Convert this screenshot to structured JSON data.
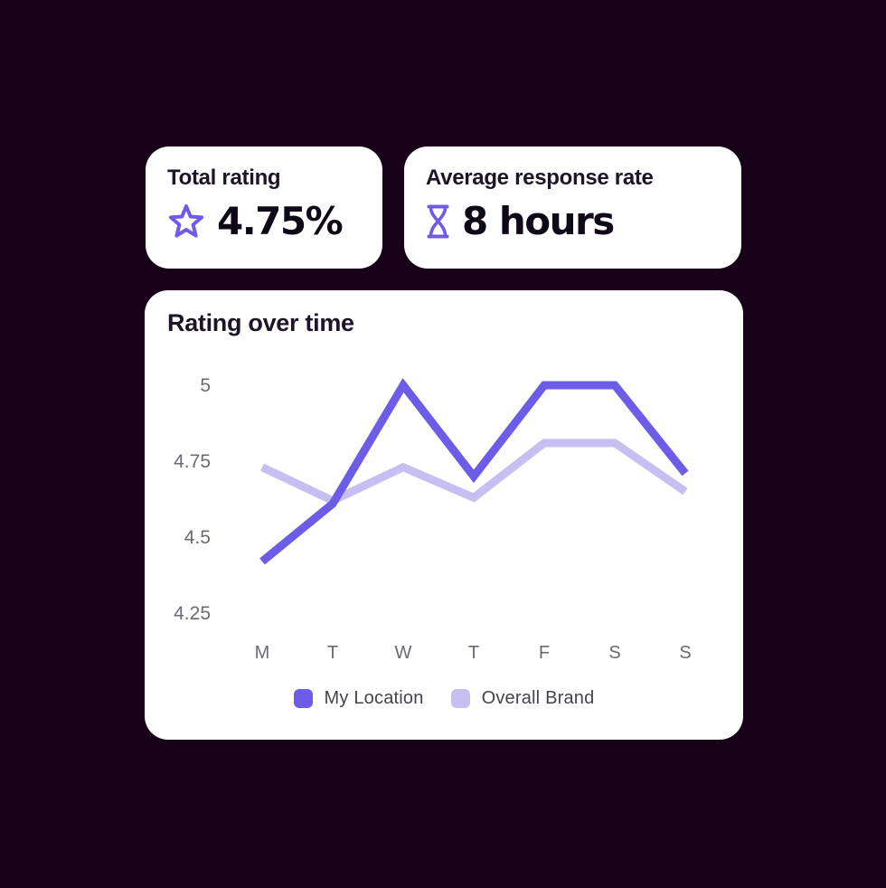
{
  "cards": {
    "total_rating": {
      "label": "Total rating",
      "value": "4.75%",
      "icon": "star-icon"
    },
    "avg_response": {
      "label": "Average response rate",
      "value": "8 hours",
      "icon": "hourglass-icon"
    }
  },
  "chart_data": {
    "type": "line",
    "title": "Rating over time",
    "categories": [
      "M",
      "T",
      "W",
      "T",
      "F",
      "S",
      "S"
    ],
    "yticks": [
      5,
      4.75,
      4.5,
      4.25
    ],
    "ylim": [
      4.25,
      5
    ],
    "grid": false,
    "legend_position": "bottom",
    "series": [
      {
        "name": "My Location",
        "color": "#6C5CE7",
        "values": [
          4.42,
          4.61,
          5.0,
          4.7,
          5.0,
          5.0,
          4.71
        ]
      },
      {
        "name": "Overall Brand",
        "color": "#C7BFF2",
        "values": [
          4.73,
          4.62,
          4.73,
          4.63,
          4.81,
          4.81,
          4.65
        ]
      }
    ]
  },
  "colors": {
    "background": "#160119",
    "card": "#FFFFFF",
    "accent": "#6C5CE7",
    "accent_light": "#C7BFF2",
    "icon_purple": "#6F5BE8"
  }
}
